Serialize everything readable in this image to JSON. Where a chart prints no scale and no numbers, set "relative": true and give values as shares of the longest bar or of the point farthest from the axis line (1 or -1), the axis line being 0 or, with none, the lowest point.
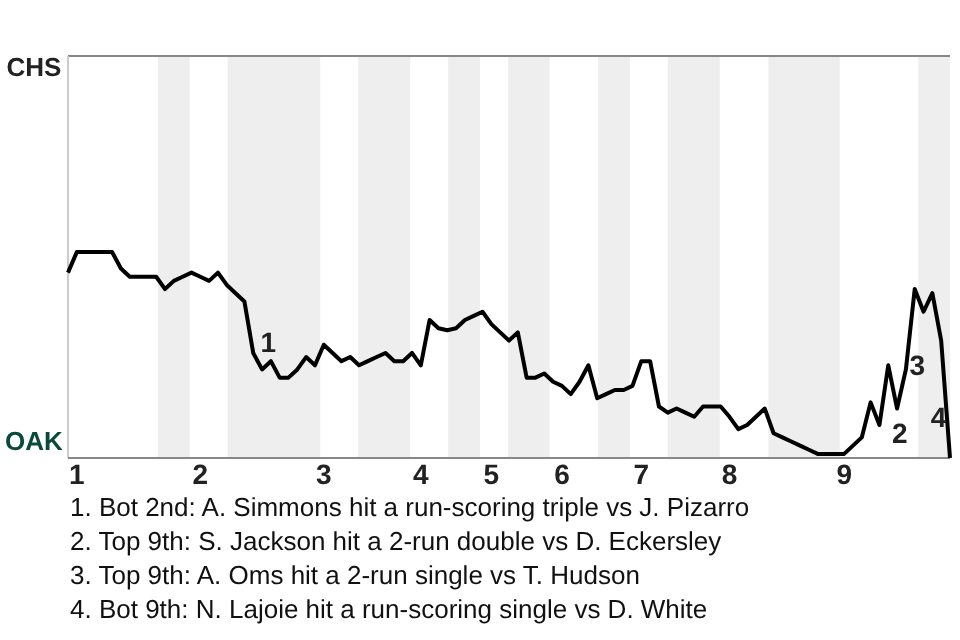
{
  "chart_data": {
    "type": "line",
    "relative": true,
    "marker": "none",
    "line_style": "solid",
    "categories": [
      null,
      "1",
      null,
      null,
      null,
      null,
      null,
      null,
      null,
      null,
      null,
      null,
      null,
      null,
      null,
      "2",
      null,
      null,
      null,
      null,
      null,
      null,
      null,
      null,
      null,
      null,
      null,
      null,
      null,
      "3",
      null,
      null,
      null,
      null,
      null,
      null,
      null,
      null,
      null,
      null,
      "4",
      null,
      null,
      null,
      null,
      null,
      null,
      null,
      "5",
      null,
      null,
      null,
      null,
      null,
      null,
      null,
      "6",
      null,
      null,
      null,
      null,
      null,
      null,
      null,
      null,
      "7",
      null,
      null,
      null,
      null,
      null,
      null,
      null,
      null,
      null,
      "8",
      null,
      null,
      null,
      null,
      null,
      null,
      null,
      null,
      null,
      null,
      null,
      null,
      "9",
      null,
      null,
      null,
      null,
      null,
      null,
      null,
      null,
      null,
      null,
      null,
      null
    ],
    "series": [
      {
        "color": "#000000",
        "values": [
          0.9,
          1,
          1,
          1,
          1,
          1,
          0.92,
          0.88,
          0.88,
          0.88,
          0.88,
          0.82,
          0.86,
          0.88,
          0.9,
          0.88,
          0.86,
          0.9,
          0.84,
          0.8,
          0.76,
          0.51,
          0.43,
          0.47,
          0.39,
          0.39,
          0.43,
          0.49,
          0.45,
          0.55,
          0.51,
          0.47,
          0.49,
          0.45,
          0.47,
          0.49,
          0.51,
          0.47,
          0.47,
          0.51,
          0.45,
          0.67,
          0.63,
          0.62,
          0.63,
          0.67,
          0.69,
          0.71,
          0.65,
          0.61,
          0.57,
          0.61,
          0.39,
          0.39,
          0.41,
          0.37,
          0.35,
          0.31,
          0.37,
          0.45,
          0.29,
          0.31,
          0.33,
          0.33,
          0.35,
          0.47,
          0.47,
          0.25,
          0.22,
          0.24,
          0.22,
          0.2,
          0.25,
          0.25,
          0.25,
          0.2,
          0.14,
          0.16,
          0.2,
          0.24,
          0.12,
          0.1,
          0.08,
          0.06,
          0.04,
          0.02,
          0.02,
          0.02,
          0.02,
          0.06,
          0.1,
          0.27,
          0.16,
          0.45,
          0.24,
          0.43,
          0.82,
          0.71,
          0.8,
          0.57,
          0
        ]
      }
    ],
    "annotations": [
      "CHS",
      "OAK",
      "1",
      "2",
      "3",
      "4",
      "1. Bot 2nd: A. Simmons hit a run-scoring triple vs J. Pizarro",
      "2. Top 9th: S. Jackson hit a 2-run double vs D. Eckersley",
      "3. Top 9th: A. Oms hit a 2-run single vs T. Hudson",
      "4. Bot 9th: N. Lajoie hit a run-scoring single vs D. White"
    ]
  }
}
